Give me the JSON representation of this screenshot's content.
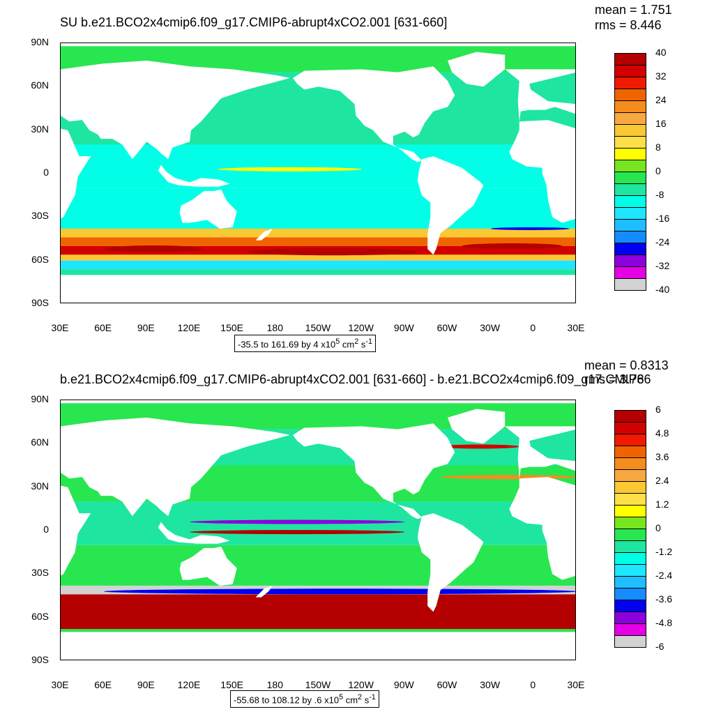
{
  "chart_data": [
    {
      "type": "heatmap",
      "title": "SU b.e21.BCO2x4cmip6.f09_g17.CMIP6-abrupt4xCO2.001 [631-660]",
      "stats": {
        "mean": "mean = 1.751",
        "rms": "rms = 8.446"
      },
      "range_label": {
        "prefix": "-35.5 to 161.69 by 4 x10",
        "exp": "5",
        "unit": " cm",
        "exp2": "2",
        "unit2": " s",
        "exp3": "-1"
      },
      "x_ticks": [
        "30E",
        "60E",
        "90E",
        "120E",
        "150E",
        "180",
        "150W",
        "120W",
        "90W",
        "60W",
        "30W",
        "0",
        "30E"
      ],
      "y_ticks": [
        "90N",
        "60N",
        "30N",
        "0",
        "30S",
        "60S",
        "90S"
      ],
      "colorbar_labels": [
        "40",
        "32",
        "24",
        "16",
        "8",
        "0",
        "-8",
        "-16",
        "-24",
        "-32",
        "-40"
      ],
      "colorbar_levels": [
        40,
        36,
        32,
        28,
        24,
        20,
        16,
        12,
        8,
        4,
        0,
        -4,
        -8,
        -12,
        -16,
        -20,
        -24,
        -28,
        -32,
        -36,
        -40
      ]
    },
    {
      "type": "heatmap",
      "title": "b.e21.BCO2x4cmip6.f09_g17.CMIP6-abrupt4xCO2.001 [631-660] - b.e21.BCO2x4cmip6.f09_g17.CMIP6",
      "stats": {
        "mean": "mean = 0.8313",
        "rms": "rms = 3.786"
      },
      "range_label": {
        "prefix": "-55.68 to 108.12 by .6 x10",
        "exp": "5",
        "unit": " cm",
        "exp2": "2",
        "unit2": " s",
        "exp3": "-1"
      },
      "x_ticks": [
        "30E",
        "60E",
        "90E",
        "120E",
        "150E",
        "180",
        "150W",
        "120W",
        "90W",
        "60W",
        "30W",
        "0",
        "30E"
      ],
      "y_ticks": [
        "90N",
        "60N",
        "30N",
        "0",
        "30S",
        "60S",
        "90S"
      ],
      "colorbar_labels": [
        "6",
        "4.8",
        "3.6",
        "2.4",
        "1.2",
        "0",
        "-1.2",
        "-2.4",
        "-3.6",
        "-4.8",
        "-6"
      ],
      "colorbar_levels": [
        6,
        5.4,
        4.8,
        4.2,
        3.6,
        3.0,
        2.4,
        1.8,
        1.2,
        0.6,
        0,
        -0.6,
        -1.2,
        -1.8,
        -2.4,
        -3.0,
        -3.6,
        -4.2,
        -4.8,
        -5.4,
        -6
      ]
    }
  ],
  "palette": [
    "#b40000",
    "#d20000",
    "#f01a00",
    "#f06400",
    "#f58c1e",
    "#f7a840",
    "#fac832",
    "#fde048",
    "#ffff00",
    "#78e61e",
    "#28e650",
    "#1ee6a0",
    "#00ffe6",
    "#1ee6ff",
    "#1ebeff",
    "#148cff",
    "#0000f0",
    "#8c00dc",
    "#e600e6",
    "#d2d2d2",
    "#787878"
  ],
  "colors": {
    "land": "#ffffff",
    "frame": "#000000"
  }
}
